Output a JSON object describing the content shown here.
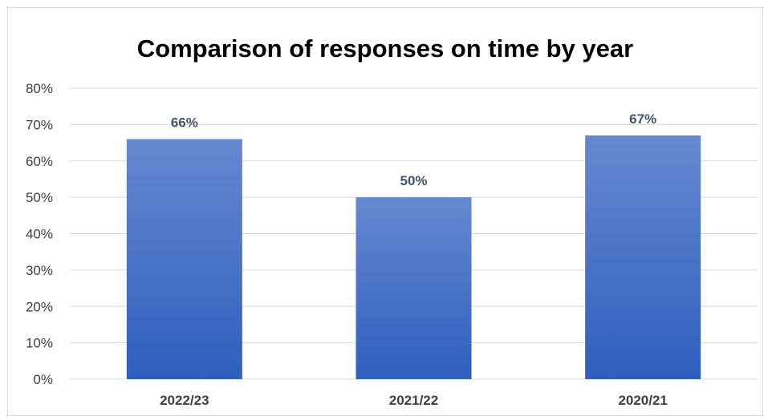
{
  "chart_data": {
    "type": "bar",
    "title": "Comparison of responses on time by year",
    "xlabel": "",
    "ylabel": "",
    "categories": [
      "2022/23",
      "2021/22",
      "2020/21"
    ],
    "values": [
      66,
      50,
      67
    ],
    "data_labels": [
      "66%",
      "50%",
      "67%"
    ],
    "ylim": [
      0,
      80
    ],
    "yticks": [
      0,
      10,
      20,
      30,
      40,
      50,
      60,
      70,
      80
    ],
    "ytick_labels": [
      "0%",
      "10%",
      "20%",
      "30%",
      "40%",
      "50%",
      "60%",
      "70%",
      "80%"
    ],
    "grid": true,
    "legend": "none",
    "bar_color_top": "#6688d0",
    "bar_color_bottom": "#2e5fbe"
  }
}
